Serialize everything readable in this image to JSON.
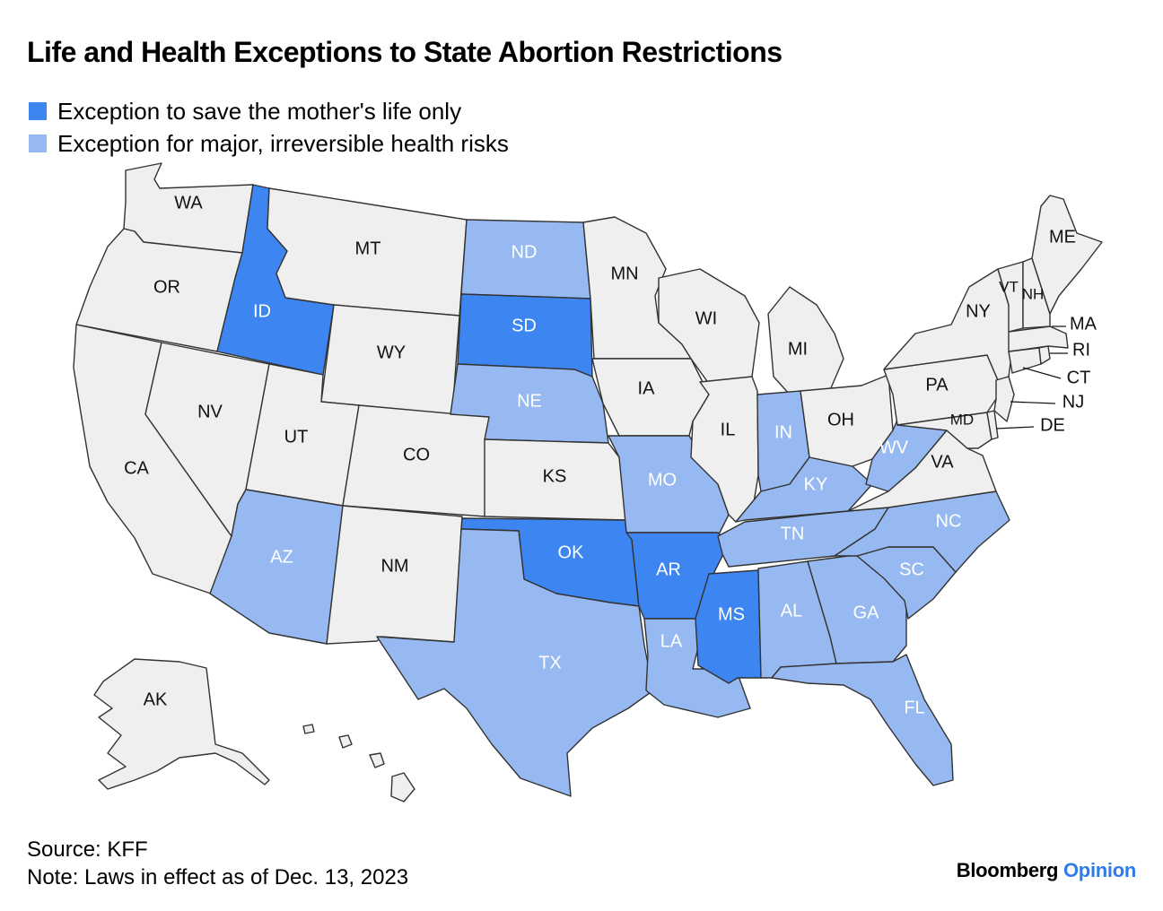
{
  "title": "Life and Health Exceptions to State Abortion Restrictions",
  "legend": [
    {
      "label": "Exception to save the mother's life only",
      "color": "#3d86f2"
    },
    {
      "label": "Exception for major, irreversible health risks",
      "color": "#97b9f1"
    }
  ],
  "colors": {
    "none": "#efefef",
    "life_only": "#3d86f2",
    "health": "#97b9f1",
    "border": "#333333"
  },
  "states": [
    {
      "abbr": "WA",
      "category": "none"
    },
    {
      "abbr": "OR",
      "category": "none"
    },
    {
      "abbr": "CA",
      "category": "none"
    },
    {
      "abbr": "ID",
      "category": "life_only"
    },
    {
      "abbr": "NV",
      "category": "none"
    },
    {
      "abbr": "MT",
      "category": "none"
    },
    {
      "abbr": "WY",
      "category": "none"
    },
    {
      "abbr": "UT",
      "category": "none"
    },
    {
      "abbr": "AZ",
      "category": "health"
    },
    {
      "abbr": "CO",
      "category": "none"
    },
    {
      "abbr": "NM",
      "category": "none"
    },
    {
      "abbr": "ND",
      "category": "health"
    },
    {
      "abbr": "SD",
      "category": "life_only"
    },
    {
      "abbr": "NE",
      "category": "health"
    },
    {
      "abbr": "KS",
      "category": "none"
    },
    {
      "abbr": "OK",
      "category": "life_only"
    },
    {
      "abbr": "TX",
      "category": "health"
    },
    {
      "abbr": "MN",
      "category": "none"
    },
    {
      "abbr": "IA",
      "category": "none"
    },
    {
      "abbr": "MO",
      "category": "health"
    },
    {
      "abbr": "AR",
      "category": "life_only"
    },
    {
      "abbr": "LA",
      "category": "health"
    },
    {
      "abbr": "WI",
      "category": "none"
    },
    {
      "abbr": "IL",
      "category": "none"
    },
    {
      "abbr": "MS",
      "category": "life_only"
    },
    {
      "abbr": "MI",
      "category": "none"
    },
    {
      "abbr": "IN",
      "category": "health"
    },
    {
      "abbr": "KY",
      "category": "health"
    },
    {
      "abbr": "TN",
      "category": "health"
    },
    {
      "abbr": "AL",
      "category": "health"
    },
    {
      "abbr": "OH",
      "category": "none"
    },
    {
      "abbr": "WV",
      "category": "health"
    },
    {
      "abbr": "GA",
      "category": "health"
    },
    {
      "abbr": "FL",
      "category": "health"
    },
    {
      "abbr": "SC",
      "category": "health"
    },
    {
      "abbr": "NC",
      "category": "health"
    },
    {
      "abbr": "VA",
      "category": "none"
    },
    {
      "abbr": "PA",
      "category": "none"
    },
    {
      "abbr": "NY",
      "category": "none"
    },
    {
      "abbr": "MD",
      "category": "none"
    },
    {
      "abbr": "DE",
      "category": "none"
    },
    {
      "abbr": "NJ",
      "category": "none"
    },
    {
      "abbr": "CT",
      "category": "none"
    },
    {
      "abbr": "RI",
      "category": "none"
    },
    {
      "abbr": "MA",
      "category": "none"
    },
    {
      "abbr": "VT",
      "category": "none"
    },
    {
      "abbr": "NH",
      "category": "none"
    },
    {
      "abbr": "ME",
      "category": "none"
    },
    {
      "abbr": "AK",
      "category": "none"
    },
    {
      "abbr": "HI",
      "category": "none"
    }
  ],
  "footer": {
    "source": "Source: KFF",
    "note": "Note: Laws in effect as of Dec. 13, 2023"
  },
  "brand": {
    "name": "Bloomberg",
    "suffix": "Opinion",
    "suffix_color": "#2f7be8"
  }
}
